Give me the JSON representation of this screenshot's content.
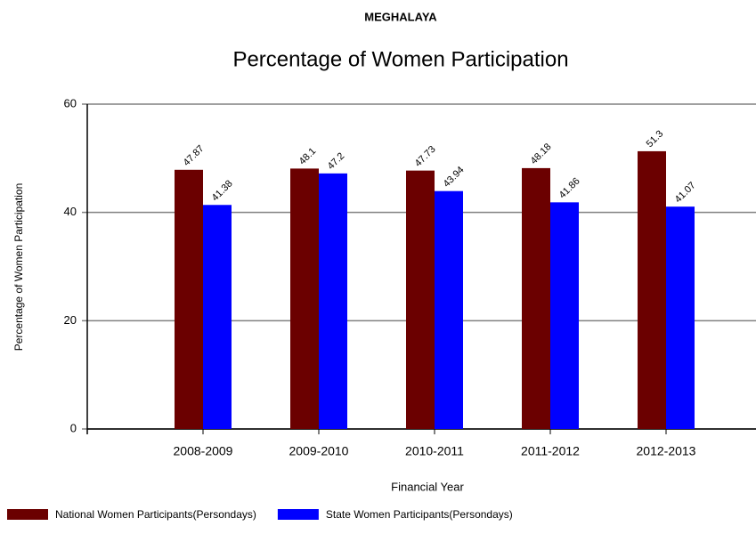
{
  "chart_data": {
    "type": "bar",
    "supertitle": "MEGHALAYA",
    "title": "Percentage of Women Participation",
    "x_label": "Financial Year",
    "y_label": "Percentage of Women Participation",
    "categories": [
      "2008-2009",
      "2009-2010",
      "2010-2011",
      "2011-2012",
      "2012-2013"
    ],
    "series": [
      {
        "name": "National Women Participants(Persondays)",
        "color": "#6b0000",
        "values": [
          47.87,
          48.1,
          47.73,
          48.18,
          51.3
        ]
      },
      {
        "name": "State Women Participants(Persondays)",
        "color": "#0000ff",
        "values": [
          41.38,
          47.2,
          43.94,
          41.86,
          41.07
        ]
      }
    ],
    "ylim": [
      0,
      60
    ],
    "yticks": [
      0,
      20,
      40,
      60
    ],
    "grid": true,
    "legend": "bottom"
  }
}
